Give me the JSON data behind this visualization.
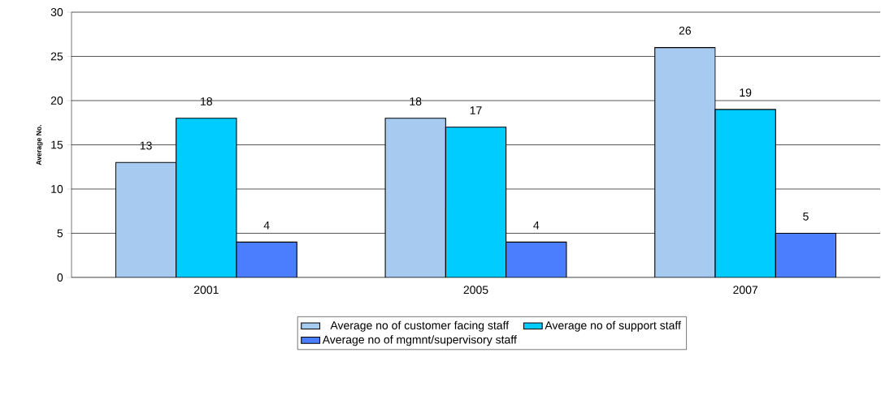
{
  "chart_data": {
    "type": "bar",
    "ylabel": "Average No.",
    "categories": [
      "2001",
      "2005",
      "2007"
    ],
    "series": [
      {
        "name": "Average no of customer facing staff",
        "color": "#a6caf0",
        "values": [
          13,
          18,
          26
        ]
      },
      {
        "name": "Average no of support staff",
        "color": "#00ccff",
        "values": [
          18,
          17,
          19
        ]
      },
      {
        "name": "Average no of mgmnt/supervisory staff",
        "color": "#4a7eff",
        "values": [
          4,
          4,
          5
        ]
      }
    ],
    "ylim": [
      0,
      30
    ],
    "yticks": [
      0,
      5,
      10,
      15,
      20,
      25,
      30
    ],
    "grid": "y",
    "legend": "bottom",
    "data_labels": true
  }
}
